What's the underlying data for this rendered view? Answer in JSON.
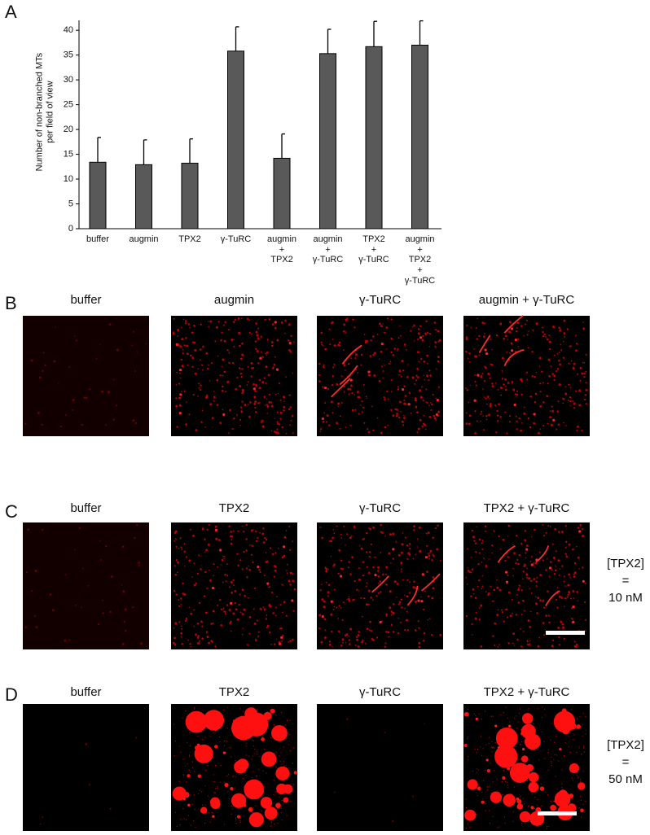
{
  "chart_data": {
    "type": "bar",
    "panel_label": "A",
    "ylabel": "Number of non-branched MTs\nper field of view",
    "categories": [
      "buffer",
      "augmin",
      "TPX2",
      "γ-TuRC",
      "augmin\n+\nTPX2",
      "augmin\n+\nγ-TuRC",
      "TPX2\n+\nγ-TuRC",
      "augmin\n+\nTPX2\n+\nγ-TuRC"
    ],
    "values": [
      13.4,
      12.9,
      13.2,
      35.8,
      14.2,
      35.3,
      36.7,
      37.0
    ],
    "errors": [
      5.0,
      5.0,
      4.9,
      4.9,
      4.9,
      4.9,
      5.1,
      4.9
    ],
    "color": "#595959",
    "ylim": [
      0,
      42
    ],
    "yticks": [
      0,
      5,
      10,
      15,
      20,
      25,
      30,
      35,
      40
    ]
  },
  "panels": [
    {
      "label": "B",
      "titles": [
        "buffer",
        "augmin",
        "γ-TuRC",
        "augmin + γ-TuRC"
      ]
    },
    {
      "label": "C",
      "titles": [
        "buffer",
        "TPX2",
        "γ-TuRC",
        "TPX2 + γ-TuRC"
      ],
      "note": "[TPX2]\n=\n10 nM"
    },
    {
      "label": "D",
      "titles": [
        "buffer",
        "TPX2",
        "γ-TuRC",
        "TPX2 + γ-TuRC"
      ],
      "note": "[TPX2]\n=\n50 nM"
    }
  ]
}
